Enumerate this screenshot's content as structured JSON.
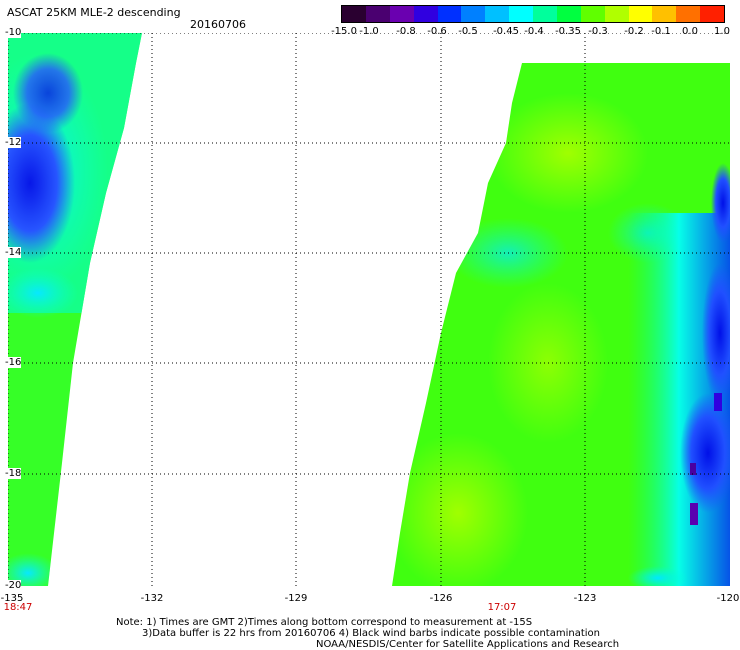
{
  "header": {
    "title": "ASCAT 25KM MLE-2 descending",
    "date": "20160706"
  },
  "colorbar": {
    "labels": [
      "-15.0",
      "-1.0",
      "-0.8",
      "-0.6",
      "-0.5",
      "-0.45",
      "-0.4",
      "-0.35",
      "-0.3",
      "-0.2",
      "-0.1",
      "0.0",
      "1.0"
    ],
    "colors": [
      "#2a0030",
      "#4a0070",
      "#6a00b0",
      "#3000e0",
      "#0030ff",
      "#0080ff",
      "#00c0ff",
      "#00ffff",
      "#00ff9c",
      "#00ff40",
      "#60ff00",
      "#b0ff00",
      "#ffff00",
      "#ffc000",
      "#ff7000",
      "#ff2000"
    ]
  },
  "axes": {
    "y_labels": [
      "-10",
      "-12",
      "-14",
      "-16",
      "-18",
      "-20"
    ],
    "x_labels": [
      "-135",
      "-132",
      "-129",
      "-126",
      "-123",
      "-120"
    ],
    "time_labels": [
      "18:47",
      "17:07"
    ]
  },
  "swaths": {
    "west": {
      "pass_time": "18:47",
      "note": "left swath shown partially"
    },
    "east": {
      "pass_time": "17:07"
    }
  },
  "notes": {
    "line1": "Note: 1) Times are GMT 2)Times along bottom correspond to measurement at -15S",
    "line2": "3)Data buffer is 22 hrs from 20160706 4) Black wind barbs indicate possible contamination",
    "line3": "NOAA/NESDIS/Center for Satellite Applications and Research"
  }
}
